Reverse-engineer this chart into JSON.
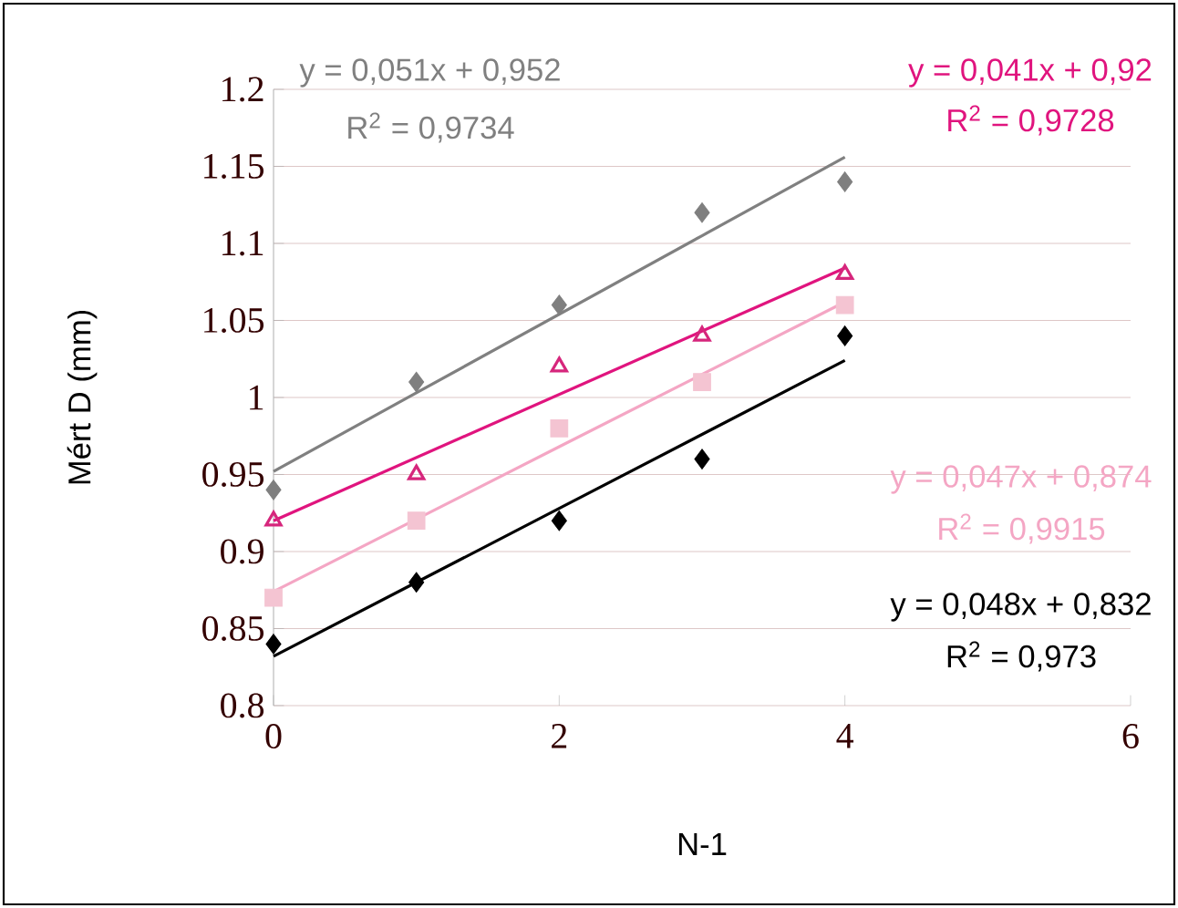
{
  "chart_data": {
    "type": "scatter",
    "xlabel": "N-1",
    "ylabel": "Mért D (mm)",
    "x": [
      0,
      1,
      2,
      3,
      4
    ],
    "series": [
      {
        "color": "#7f7f7f",
        "marker": "diamond",
        "values": [
          0.94,
          1.01,
          1.06,
          1.12,
          1.14
        ]
      },
      {
        "color": "#d6267c",
        "marker": "triangle",
        "values": [
          0.92,
          0.95,
          1.02,
          1.04,
          1.08
        ]
      },
      {
        "color": "#f4c4d2",
        "marker": "square",
        "values": [
          0.87,
          0.92,
          0.98,
          1.01,
          1.06
        ]
      },
      {
        "color": "#000000",
        "marker": "diamond",
        "values": [
          0.84,
          0.88,
          0.92,
          0.96,
          1.04
        ]
      },
      {
        "type": "line",
        "color": "#808080",
        "values": [
          0.952,
          1.003,
          1.054,
          1.105,
          1.156
        ]
      },
      {
        "type": "line",
        "color": "#e0147e",
        "values": [
          0.92,
          0.961,
          1.002,
          1.043,
          1.084
        ]
      },
      {
        "type": "line",
        "color": "#f4a6c4",
        "values": [
          0.874,
          0.921,
          0.968,
          1.015,
          1.062
        ]
      },
      {
        "type": "line",
        "color": "#000000",
        "values": [
          0.832,
          0.88,
          0.928,
          0.976,
          1.024
        ]
      }
    ],
    "xlim": [
      0,
      6
    ],
    "ylim": [
      0.8,
      1.2
    ],
    "xticks": [
      0,
      2,
      4,
      6
    ],
    "yticks": [
      0.8,
      0.85,
      0.9,
      0.95,
      1,
      1.05,
      1.1,
      1.15,
      1.2
    ],
    "grid": "y",
    "annotations": [
      "y = 0,051x + 0,952",
      "R$^{2}$ = 0,9734",
      "y = 0,041x + 0,92",
      "R$^{2}$ = 0,9728",
      "y = 0,047x + 0,874",
      "R$^{2}$ = 0,9915",
      "y = 0,048x + 0,832",
      "R$^{2}$ = 0,973"
    ]
  }
}
